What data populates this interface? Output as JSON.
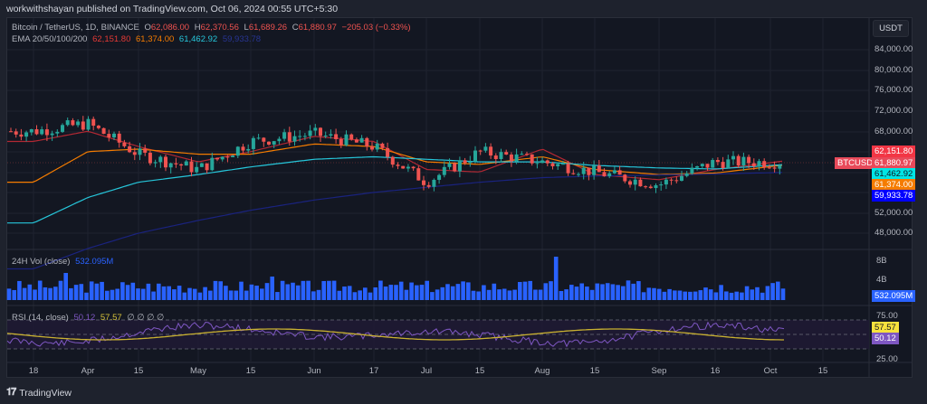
{
  "header": {
    "published": "workwithshayan published on TradingView.com, Oct 06, 2024 00:55 UTC+5:30"
  },
  "symbol_legend": {
    "name": "Bitcoin / TetherUS, 1D, BINANCE",
    "o_label": "O",
    "open": "62,086.00",
    "h_label": "H",
    "high": "62,370.56",
    "l_label": "L",
    "low": "61,689.26",
    "c_label": "C",
    "close": "61,880.97",
    "change": "−205.03 (−0.33%)"
  },
  "ema_legend": {
    "name": "EMA 20/50/100/200",
    "ema20": "62,151.80",
    "ema50": "61,374.00",
    "ema100": "61,462.92",
    "ema200": "59,933.78"
  },
  "price_axis": {
    "unit": "USDT",
    "ticks": [
      "84,000.00",
      "80,000.00",
      "76,000.00",
      "72,000.00",
      "68,000.00",
      "52,000.00",
      "48,000.00"
    ],
    "tags": {
      "ema20": "62,151.80",
      "symbol_label": "BTCUSDT",
      "last": "61,880.97",
      "ema100": "61,462.92",
      "ema50": "61,374.00",
      "ema200": "59,933.78"
    }
  },
  "volume_pane": {
    "title": "24H Vol (close)",
    "value": "532.095M",
    "ticks": [
      "8B",
      "4B"
    ],
    "tag": "532.095M"
  },
  "rsi_pane": {
    "title": "RSI (14, close)",
    "rsi": "50.12",
    "rsi_ma": "57.57",
    "extra": "∅ ∅ ∅ ∅",
    "ticks": [
      "75.00",
      "25.00"
    ],
    "tag_ma": "57.57",
    "tag_rsi": "50.12"
  },
  "time_axis": [
    "18",
    "Apr",
    "15",
    "May",
    "15",
    "Jun",
    "17",
    "Jul",
    "15",
    "Aug",
    "15",
    "Sep",
    "16",
    "Oct",
    "15"
  ],
  "footer": {
    "brand": "TradingView"
  },
  "colors": {
    "up": "#26a69a",
    "down": "#ef5350",
    "ema20": "#b22833",
    "ema50": "#f57c00",
    "ema100": "#26c6da",
    "ema200": "#1a237e",
    "volume": "#2962ff",
    "rsi": "#7e57c2",
    "rsi_ma": "#c9b131"
  },
  "chart_data": {
    "type": "line",
    "title": "Bitcoin / TetherUS, 1D, BINANCE",
    "xlabel": "",
    "ylabel": "USDT",
    "ylim": [
      44000,
      88000
    ],
    "categories": [
      "18 Mar",
      "Apr",
      "15 Apr",
      "May",
      "15 May",
      "Jun",
      "17 Jun",
      "Jul",
      "15 Jul",
      "Aug",
      "15 Aug",
      "Sep",
      "16 Sep",
      "Oct"
    ],
    "series": [
      {
        "name": "BTCUSDT close (approx)",
        "values": [
          68000,
          69500,
          63500,
          60500,
          66000,
          67500,
          65000,
          58000,
          64000,
          62000,
          60000,
          57500,
          62000,
          61880.97
        ]
      },
      {
        "name": "EMA 20",
        "values": [
          66000,
          68000,
          65000,
          62000,
          64000,
          67000,
          66000,
          60500,
          60000,
          64500,
          59500,
          58500,
          60500,
          62151.8
        ]
      },
      {
        "name": "EMA 50",
        "values": [
          58000,
          64000,
          64500,
          63500,
          63500,
          65500,
          65000,
          62000,
          61500,
          63000,
          60500,
          59500,
          59800,
          61374.0
        ]
      },
      {
        "name": "EMA 100",
        "values": [
          50000,
          55000,
          58000,
          59500,
          61000,
          62500,
          63000,
          62500,
          62000,
          62000,
          61300,
          60800,
          60600,
          61462.92
        ]
      },
      {
        "name": "EMA 200",
        "values": [
          41000,
          45000,
          48000,
          50500,
          52500,
          54500,
          56000,
          57000,
          58000,
          58900,
          59200,
          59400,
          59600,
          59933.78
        ]
      }
    ],
    "volume": {
      "title": "24H Vol (close)",
      "last": "532.095M",
      "peak_date": "Aug 5",
      "peak_approx": 8500000000
    },
    "rsi": {
      "title": "RSI (14, close)",
      "rsi": 50.12,
      "rsi_ma": 57.57,
      "bands": [
        75,
        25
      ]
    }
  }
}
